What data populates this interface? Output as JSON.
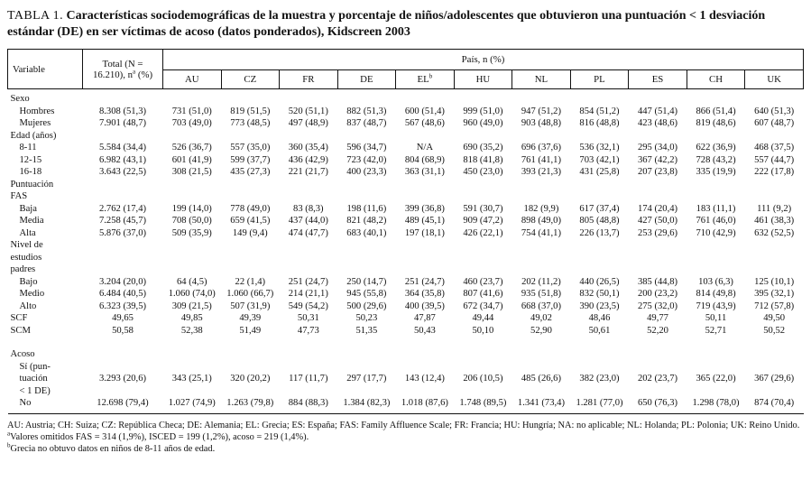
{
  "title": {
    "label": "TABLA 1.",
    "text": "Características sociodemográficas de la muestra y porcentaje de niños/adolescentes que obtuvieron una puntuación < 1 desviación estándar (DE) en ser víctimas de acoso (datos ponderados), Kidscreen 2003"
  },
  "table": {
    "header": {
      "variable": "Variable",
      "total_line1": "Total (N =",
      "total_line2": "16.210), n",
      "total_sup": "a",
      "total_line3": " (%)",
      "country_group": "País, n (%)",
      "countries": [
        {
          "label": "AU"
        },
        {
          "label": "CZ"
        },
        {
          "label": "FR"
        },
        {
          "label": "DE"
        },
        {
          "label": "EL",
          "sup": "b"
        },
        {
          "label": "HU"
        },
        {
          "label": "NL"
        },
        {
          "label": "PL"
        },
        {
          "label": "ES"
        },
        {
          "label": "CH"
        },
        {
          "label": "UK"
        }
      ]
    },
    "rows": [
      {
        "label": "Sexo",
        "group": true
      },
      {
        "label": "Hombres",
        "indent": true,
        "values": [
          "8.308 (51,3)",
          "731 (51,0)",
          "819 (51,5)",
          "520 (51,1)",
          "882 (51,3)",
          "600 (51,4)",
          "999 (51,0)",
          "947 (51,2)",
          "854 (51,2)",
          "447 (51,4)",
          "866 (51,4)",
          "640 (51,3)"
        ]
      },
      {
        "label": "Mujeres",
        "indent": true,
        "values": [
          "7.901 (48,7)",
          "703 (49,0)",
          "773 (48,5)",
          "497 (48,9)",
          "837 (48,7)",
          "567 (48,6)",
          "960 (49,0)",
          "903 (48,8)",
          "816 (48,8)",
          "423 (48,6)",
          "819 (48,6)",
          "607 (48,7)"
        ]
      },
      {
        "label": "Edad (años)",
        "group": true
      },
      {
        "label": "8-11",
        "indent": true,
        "values": [
          "5.584 (34,4)",
          "526 (36,7)",
          "557 (35,0)",
          "360 (35,4)",
          "596 (34,7)",
          "N/A",
          "690 (35,2)",
          "696 (37,6)",
          "536 (32,1)",
          "295 (34,0)",
          "622 (36,9)",
          "468 (37,5)"
        ]
      },
      {
        "label": "12-15",
        "indent": true,
        "values": [
          "6.982 (43,1)",
          "601 (41,9)",
          "599 (37,7)",
          "436 (42,9)",
          "723 (42,0)",
          "804 (68,9)",
          "818 (41,8)",
          "761 (41,1)",
          "703 (42,1)",
          "367 (42,2)",
          "728 (43,2)",
          "557 (44,7)"
        ]
      },
      {
        "label": "16-18",
        "indent": true,
        "values": [
          "3.643 (22,5)",
          "308 (21,5)",
          "435 (27,3)",
          "221 (21,7)",
          "400 (23,3)",
          "363 (31,1)",
          "450 (23,0)",
          "393 (21,3)",
          "431 (25,8)",
          "207 (23,8)",
          "335 (19,9)",
          "222 (17,8)"
        ]
      },
      {
        "label": "Puntuación\nFAS",
        "group": true
      },
      {
        "label": "Baja",
        "indent": true,
        "values": [
          "2.762 (17,4)",
          "199 (14,0)",
          "778 (49,0)",
          "83 (8,3)",
          "198 (11,6)",
          "399 (36,8)",
          "591 (30,7)",
          "182 (9,9)",
          "617 (37,4)",
          "174 (20,4)",
          "183 (11,1)",
          "111 (9,2)"
        ]
      },
      {
        "label": "Media",
        "indent": true,
        "values": [
          "7.258 (45,7)",
          "708 (50,0)",
          "659 (41,5)",
          "437 (44,0)",
          "821 (48,2)",
          "489 (45,1)",
          "909 (47,2)",
          "898 (49,0)",
          "805 (48,8)",
          "427 (50,0)",
          "761 (46,0)",
          "461 (38,3)"
        ]
      },
      {
        "label": "Alta",
        "indent": true,
        "values": [
          "5.876 (37,0)",
          "509 (35,9)",
          "149 (9,4)",
          "474 (47,7)",
          "683 (40,1)",
          "197 (18,1)",
          "426 (22,1)",
          "754 (41,1)",
          "226 (13,7)",
          "253 (29,6)",
          "710 (42,9)",
          "632 (52,5)"
        ]
      },
      {
        "label": "Nivel de\nestudios\npadres",
        "group": true
      },
      {
        "label": "Bajo",
        "indent": true,
        "values": [
          "3.204 (20,0)",
          "64 (4,5)",
          "22 (1,4)",
          "251 (24,7)",
          "250 (14,7)",
          "251 (24,7)",
          "460 (23,7)",
          "202 (11,2)",
          "440 (26,5)",
          "385 (44,8)",
          "103 (6,3)",
          "125 (10,1)"
        ]
      },
      {
        "label": "Medio",
        "indent": true,
        "values": [
          "6.484 (40,5)",
          "1.060 (74,0)",
          "1.060 (66,7)",
          "214 (21,1)",
          "945 (55,8)",
          "364 (35,8)",
          "807 (41,6)",
          "935 (51,8)",
          "832 (50,1)",
          "200 (23,2)",
          "814 (49,8)",
          "395 (32,1)"
        ]
      },
      {
        "label": "Alto",
        "indent": true,
        "values": [
          "6.323 (39,5)",
          "309 (21,5)",
          "507 (31,9)",
          "549 (54,2)",
          "500 (29,6)",
          "400 (39,5)",
          "672 (34,7)",
          "668 (37,0)",
          "390 (23,5)",
          "275 (32,0)",
          "719 (43,9)",
          "712 (57,8)"
        ]
      },
      {
        "label": "SCF",
        "values": [
          "49,65",
          "49,85",
          "49,39",
          "50,31",
          "50,23",
          "47,87",
          "49,44",
          "49,02",
          "48,46",
          "49,77",
          "50,11",
          "49,50"
        ]
      },
      {
        "label": "SCM",
        "values": [
          "50,58",
          "52,38",
          "51,49",
          "47,73",
          "51,35",
          "50,43",
          "50,10",
          "52,90",
          "50,61",
          "52,20",
          "52,71",
          "50,52"
        ]
      },
      {
        "label": "Acoso",
        "group": true,
        "spacer": true
      },
      {
        "label": "Sí (pun-\ntuación\n< 1 DE)",
        "indent": true,
        "values": [
          "3.293 (20,6)",
          "343 (25,1)",
          "320 (20,2)",
          "117 (11,7)",
          "297 (17,7)",
          "143 (12,4)",
          "206 (10,5)",
          "485 (26,6)",
          "382 (23,0)",
          "202 (23,7)",
          "365 (22,0)",
          "367 (29,6)"
        ]
      },
      {
        "label": "No",
        "indent": true,
        "values": [
          "12.698 (79,4)",
          "1.027 (74,9)",
          "1.263 (79,8)",
          "884 (88,3)",
          "1.384 (82,3)",
          "1.018 (87,6)",
          "1.748 (89,5)",
          "1.341 (73,4)",
          "1.281 (77,0)",
          "650 (76,3)",
          "1.298 (78,0)",
          "874 (70,4)"
        ]
      }
    ]
  },
  "footnotes": [
    {
      "sup": "",
      "text": "AU: Austria; CH: Suiza; CZ: República Checa; DE: Alemania; EL: Grecia; ES: España; FAS: Family Affluence Scale; FR: Francia; HU: Hungría; NA: no aplicable; NL: Holanda; PL: Polonia; UK: Reino Unido."
    },
    {
      "sup": "a",
      "text": "Valores omitidos FAS = 314 (1,9%), ISCED = 199 (1,2%), acoso = 219 (1,4%)."
    },
    {
      "sup": "b",
      "text": "Grecia no obtuvo datos en niños de 8-11 años de edad."
    }
  ]
}
